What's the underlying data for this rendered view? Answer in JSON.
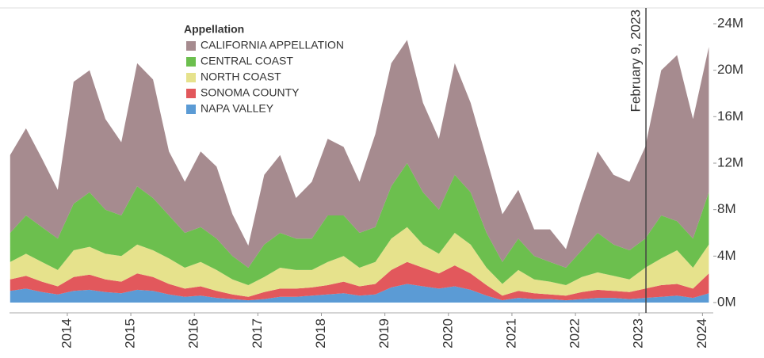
{
  "chart_data": {
    "type": "stacked-area",
    "legend_title": "Appellation",
    "x": [
      2013.1,
      2013.35,
      2013.6,
      2013.85,
      2014.1,
      2014.35,
      2014.6,
      2014.85,
      2015.1,
      2015.35,
      2015.6,
      2015.85,
      2016.1,
      2016.35,
      2016.6,
      2016.85,
      2017.1,
      2017.35,
      2017.6,
      2017.85,
      2018.1,
      2018.35,
      2018.6,
      2018.85,
      2019.1,
      2019.35,
      2019.6,
      2019.85,
      2020.1,
      2020.35,
      2020.6,
      2020.85,
      2021.1,
      2021.35,
      2021.6,
      2021.85,
      2022.1,
      2022.35,
      2022.6,
      2022.85,
      2023.1,
      2023.35,
      2023.6,
      2023.85,
      2024.1
    ],
    "series": [
      {
        "name": "CALIFORNIA APPELLATION",
        "color": "#a68b8f",
        "values": [
          6.7,
          7.5,
          5.9,
          4.2,
          10.5,
          10.5,
          7.8,
          6.3,
          10.6,
          10.2,
          5.5,
          4.4,
          6.5,
          6.2,
          3.6,
          1.9,
          6.0,
          6.7,
          3.5,
          4.9,
          6.6,
          5.9,
          4.4,
          8.0,
          10.6,
          10.6,
          7.7,
          6.1,
          9.6,
          7.7,
          6.4,
          4.1,
          4.2,
          2.3,
          2.8,
          1.6,
          4.5,
          7.0,
          6.0,
          5.9,
          7.9,
          12.5,
          14.3,
          10.3,
          12.5
        ]
      },
      {
        "name": "CENTRAL COAST",
        "color": "#6cbf4e",
        "values": [
          2.5,
          3.3,
          3.0,
          2.7,
          4.0,
          4.7,
          3.8,
          3.5,
          5.0,
          4.5,
          3.7,
          3.0,
          3.0,
          2.7,
          2.0,
          1.5,
          2.8,
          3.0,
          2.7,
          2.7,
          4.0,
          3.5,
          3.0,
          3.0,
          4.5,
          5.5,
          4.5,
          3.8,
          5.0,
          4.5,
          3.0,
          1.9,
          2.7,
          2.0,
          1.7,
          1.5,
          2.3,
          3.4,
          2.7,
          2.5,
          2.5,
          3.7,
          2.5,
          2.5,
          4.5
        ]
      },
      {
        "name": "NORTH COAST",
        "color": "#e6e28c",
        "values": [
          1.5,
          1.9,
          1.7,
          1.4,
          2.3,
          2.4,
          2.2,
          2.2,
          2.5,
          2.3,
          2.2,
          1.8,
          2.1,
          1.8,
          1.3,
          1.0,
          1.3,
          1.8,
          1.6,
          1.5,
          2.0,
          2.2,
          1.6,
          1.9,
          2.7,
          3.0,
          2.0,
          1.7,
          2.8,
          2.5,
          1.5,
          1.0,
          1.8,
          1.2,
          1.1,
          0.9,
          1.3,
          1.5,
          1.3,
          1.1,
          1.8,
          2.3,
          2.9,
          1.8,
          2.5
        ]
      },
      {
        "name": "SONOMA COUNTY",
        "color": "#e2585c",
        "values": [
          1.0,
          1.1,
          0.9,
          0.7,
          1.2,
          1.3,
          1.1,
          1.0,
          1.4,
          1.2,
          0.9,
          0.7,
          0.8,
          0.6,
          0.4,
          0.3,
          0.6,
          0.7,
          0.7,
          0.7,
          0.8,
          1.0,
          0.8,
          0.9,
          1.5,
          1.9,
          1.6,
          1.3,
          1.8,
          1.4,
          0.9,
          0.4,
          0.6,
          0.5,
          0.4,
          0.4,
          0.6,
          0.7,
          0.6,
          0.6,
          0.8,
          1.0,
          1.0,
          0.8,
          1.7
        ]
      },
      {
        "name": "NAPA VALLEY",
        "color": "#5b9bd5",
        "values": [
          1.0,
          1.2,
          0.9,
          0.7,
          1.0,
          1.1,
          0.9,
          0.8,
          1.1,
          1.0,
          0.7,
          0.5,
          0.6,
          0.4,
          0.3,
          0.2,
          0.3,
          0.5,
          0.5,
          0.6,
          0.7,
          0.8,
          0.6,
          0.7,
          1.3,
          1.6,
          1.4,
          1.2,
          1.4,
          1.1,
          0.6,
          0.2,
          0.4,
          0.3,
          0.3,
          0.2,
          0.3,
          0.4,
          0.4,
          0.3,
          0.4,
          0.5,
          0.6,
          0.4,
          0.8
        ]
      }
    ],
    "xlim": [
      2013.09,
      2024.17
    ],
    "xticks": [
      2014,
      2015,
      2016,
      2017,
      2018,
      2019,
      2020,
      2021,
      2022,
      2023,
      2024
    ],
    "ylim": [
      0,
      24
    ],
    "yticks": [
      {
        "value": 0,
        "label": "0M"
      },
      {
        "value": 4,
        "label": "4M"
      },
      {
        "value": 8,
        "label": "8M"
      },
      {
        "value": 12,
        "label": "12M"
      },
      {
        "value": 16,
        "label": "16M"
      },
      {
        "value": 20,
        "label": "20M"
      },
      {
        "value": 24,
        "label": "24M"
      }
    ],
    "annotation": {
      "text": "February 9, 2023",
      "x": 2023.11
    }
  }
}
